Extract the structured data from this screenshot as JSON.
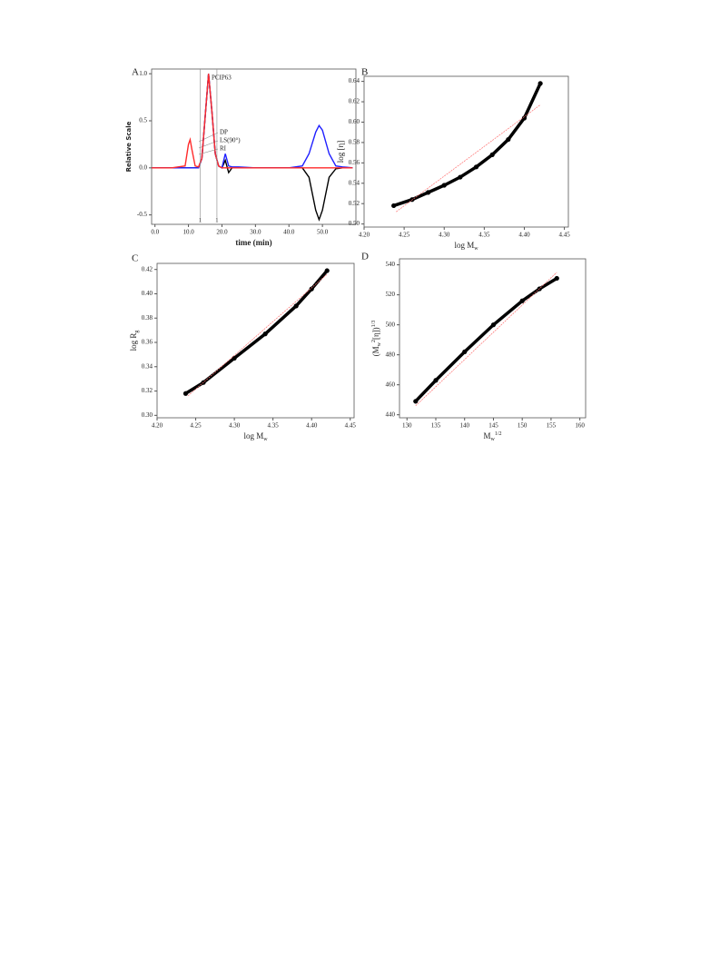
{
  "chart_data": [
    {
      "type": "line",
      "panel": "A",
      "x_label": [
        {
          "text": "time (min)"
        }
      ],
      "y_label": [
        {
          "text": "Relative Scale"
        }
      ],
      "xlim": [
        -1,
        60
      ],
      "ylim": [
        -0.6,
        1.05
      ],
      "xticks": [
        {
          "value": 0,
          "label": "0.0"
        },
        {
          "value": 10,
          "label": "10.0"
        },
        {
          "value": 20,
          "label": "20.0"
        },
        {
          "value": 30,
          "label": "30.0"
        },
        {
          "value": 40,
          "label": "40.0"
        },
        {
          "value": 50,
          "label": "50.0"
        }
      ],
      "yticks": [
        -0.5,
        {
          "value": 0,
          "label": "0.0"
        },
        0.5,
        {
          "value": 1,
          "label": "1.0"
        }
      ],
      "x": [
        -1,
        5,
        9,
        10,
        10.5,
        11,
        12,
        13,
        14,
        15,
        16,
        17,
        18,
        19,
        20,
        21,
        22,
        23,
        25,
        30,
        40,
        44,
        46,
        48,
        49,
        50,
        52,
        54,
        56,
        59
      ],
      "series": [
        {
          "name": "DP",
          "color": "#000000",
          "values": [
            0,
            0,
            0,
            0,
            0,
            0,
            0,
            0,
            0.1,
            0.55,
            1.0,
            0.6,
            0.15,
            0.02,
            0,
            0.08,
            -0.05,
            0,
            0,
            0,
            0,
            0,
            -0.1,
            -0.45,
            -0.55,
            -0.45,
            -0.1,
            -0.01,
            0,
            0
          ]
        },
        {
          "name": "LS(90°)",
          "color": "#1f1fff",
          "values": [
            0,
            0,
            0,
            0,
            0,
            0,
            0,
            0,
            0.1,
            0.55,
            1.0,
            0.6,
            0.15,
            0.02,
            0,
            0.15,
            0.02,
            0.01,
            0.01,
            0,
            0,
            0.02,
            0.15,
            0.38,
            0.45,
            0.4,
            0.15,
            0.02,
            0.01,
            0
          ]
        },
        {
          "name": "RI",
          "color": "#ff2a2a",
          "values": [
            0,
            0,
            0.02,
            0.25,
            0.3,
            0.2,
            0.02,
            0.01,
            0.1,
            0.55,
            1.0,
            0.6,
            0.15,
            0.02,
            0,
            0,
            0,
            0,
            0,
            0,
            0,
            0,
            0,
            0,
            0,
            0,
            0,
            0,
            0,
            0
          ]
        }
      ],
      "annotation": "PCIP63",
      "markers": [
        {
          "x": 13.5,
          "label": "1"
        },
        {
          "x": 18.5,
          "label": "1"
        }
      ]
    },
    {
      "type": "scatter",
      "panel": "B",
      "x_label": [
        {
          "text": "log M"
        },
        {
          "text": "w",
          "shift": "sub"
        }
      ],
      "y_label": [
        {
          "text": "log [η]"
        }
      ],
      "xlim": [
        4.2,
        4.455
      ],
      "ylim": [
        0.497,
        0.645
      ],
      "xticks": [
        {
          "value": 4.2,
          "label": "4.20"
        },
        4.25,
        {
          "value": 4.3,
          "label": "4.30"
        },
        4.35,
        {
          "value": 4.4,
          "label": "4.40"
        },
        4.45
      ],
      "yticks": [
        {
          "value": 0.5,
          "label": "0.50"
        },
        0.52,
        0.54,
        0.56,
        0.58,
        {
          "value": 0.6,
          "label": "0.60"
        },
        0.62,
        0.64
      ],
      "series": [
        {
          "color": "#000000",
          "x": [
            4.237,
            4.26,
            4.28,
            4.3,
            4.32,
            4.34,
            4.36,
            4.38,
            4.4,
            4.42
          ],
          "values": [
            0.518,
            0.524,
            0.531,
            0.538,
            0.546,
            0.556,
            0.568,
            0.583,
            0.604,
            0.638
          ]
        },
        {
          "color": "#ff7070",
          "x": [
            4.24,
            4.42
          ],
          "values": [
            0.512,
            0.617
          ]
        }
      ]
    },
    {
      "type": "scatter",
      "panel": "C",
      "x_label": [
        {
          "text": "log M"
        },
        {
          "text": "w",
          "shift": "sub"
        }
      ],
      "y_label": [
        {
          "text": "log R"
        },
        {
          "text": "g",
          "shift": "sub"
        }
      ],
      "xlim": [
        4.2,
        4.455
      ],
      "ylim": [
        0.298,
        0.425
      ],
      "xticks": [
        {
          "value": 4.2,
          "label": "4.20"
        },
        4.25,
        {
          "value": 4.3,
          "label": "4.30"
        },
        4.35,
        {
          "value": 4.4,
          "label": "4.40"
        },
        4.45
      ],
      "yticks": [
        {
          "value": 0.3,
          "label": "0.30"
        },
        0.32,
        0.34,
        0.36,
        0.38,
        {
          "value": 0.4,
          "label": "0.40"
        },
        0.42
      ],
      "series": [
        {
          "color": "#000000",
          "x": [
            4.237,
            4.26,
            4.3,
            4.34,
            4.38,
            4.4,
            4.42
          ],
          "values": [
            0.318,
            0.327,
            0.347,
            0.367,
            0.39,
            0.404,
            0.419
          ]
        },
        {
          "color": "#ff7070",
          "x": [
            4.24,
            4.42
          ],
          "values": [
            0.316,
            0.416
          ]
        }
      ]
    },
    {
      "type": "scatter",
      "panel": "D",
      "x_label": [
        {
          "text": "M"
        },
        {
          "text": "w",
          "shift": "sub"
        },
        {
          "text": "1/2",
          "shift": "sup"
        }
      ],
      "y_label": [
        {
          "text": "(M"
        },
        {
          "text": "w",
          "shift": "sub"
        },
        {
          "text": "2",
          "shift": "sup"
        },
        {
          "text": "[η])"
        },
        {
          "text": "1/3",
          "shift": "sup"
        }
      ],
      "xlim": [
        128.7,
        161
      ],
      "ylim": [
        438,
        544
      ],
      "xticks": [
        130,
        135,
        140,
        145,
        150,
        155,
        160
      ],
      "yticks": [
        440,
        460,
        480,
        500,
        520,
        540
      ],
      "series": [
        {
          "color": "#000000",
          "x": [
            131.5,
            135,
            140,
            145,
            150,
            153,
            156
          ],
          "values": [
            449,
            463,
            482,
            500,
            516,
            524,
            531
          ]
        },
        {
          "color": "#ff7070",
          "x": [
            131.5,
            156
          ],
          "values": [
            446,
            535
          ]
        }
      ]
    }
  ]
}
